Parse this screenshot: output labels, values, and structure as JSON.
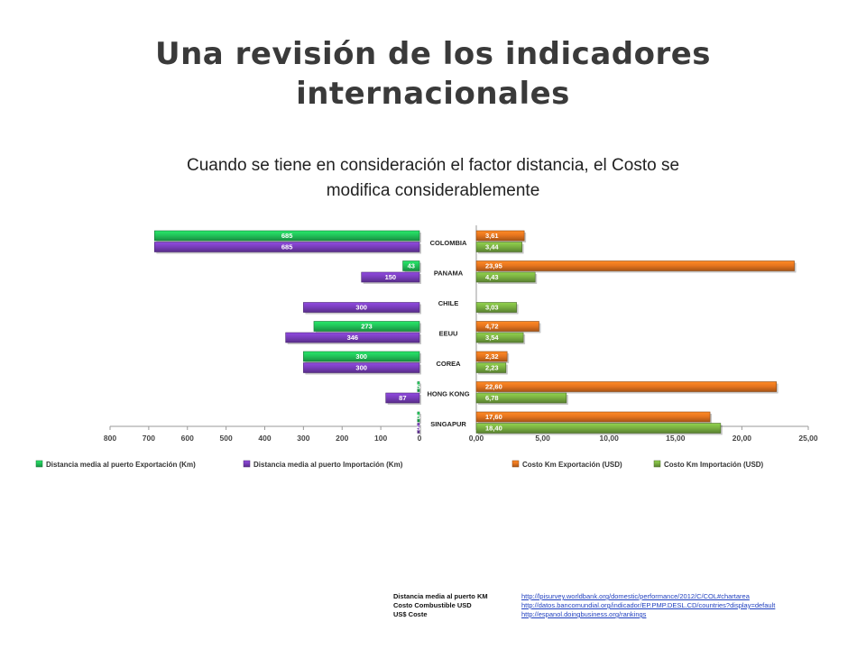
{
  "title_line1": "Una revisión de los indicadores",
  "title_line2": "internacionales",
  "subtitle_line1": "Cuando se tiene en consideración el factor distancia, el Costo se",
  "subtitle_line2": "modifica considerablemente",
  "chart_data": [
    {
      "type": "bar",
      "orientation": "horizontal",
      "direction": "reversed",
      "categories": [
        "COLOMBIA",
        "PANAMA",
        "CHILE",
        "EEUU",
        "COREA",
        "HONG KONG",
        "SINGAPUR"
      ],
      "series": [
        {
          "name": "Distancia media al puerto Exportación (Km)",
          "color": "#22c55a",
          "values": [
            685,
            43,
            null,
            273,
            300,
            5,
            5
          ],
          "labels": [
            "685",
            "43",
            "",
            "273",
            "300",
            "5",
            "5"
          ]
        },
        {
          "name": "Distancia media al puerto Importación (Km)",
          "color": "#7b3fbf",
          "values": [
            685,
            150,
            300,
            346,
            300,
            87,
            5
          ],
          "labels": [
            "685",
            "150",
            "300",
            "346",
            "300",
            "87",
            "5"
          ]
        }
      ],
      "xlim": [
        0,
        800
      ],
      "xticks": [
        "800",
        "700",
        "600",
        "500",
        "400",
        "300",
        "200",
        "100",
        "0"
      ],
      "legend_position": "bottom"
    },
    {
      "type": "bar",
      "orientation": "horizontal",
      "categories": [
        "COLOMBIA",
        "PANAMA",
        "CHILE",
        "EEUU",
        "COREA",
        "HONG KONG",
        "SINGAPUR"
      ],
      "series": [
        {
          "name": "Costo Km Exportación (USD)",
          "color": "#e8761f",
          "values": [
            3.61,
            23.95,
            null,
            4.72,
            2.32,
            22.6,
            17.6
          ],
          "labels": [
            "3,61",
            "23,95",
            "",
            "4,72",
            "2,32",
            "22,60",
            "17,60"
          ]
        },
        {
          "name": "Costo Km Importación (USD)",
          "color": "#7cb342",
          "values": [
            3.44,
            4.43,
            3.03,
            3.54,
            2.23,
            6.78,
            18.4
          ],
          "labels": [
            "3,44",
            "4,43",
            "3,03",
            "3,54",
            "2,23",
            "6,78",
            "18,40"
          ]
        }
      ],
      "xlim": [
        0,
        25
      ],
      "xticks": [
        "0,00",
        "5,00",
        "10,00",
        "15,00",
        "20,00",
        "25,00"
      ],
      "legend_position": "bottom"
    }
  ],
  "sources": [
    {
      "label": "Distancia media al puerto KM",
      "url": "http://lpisurvey.worldbank.org/domestic/performance/2012/C/COL#chartarea"
    },
    {
      "label": "Costo Combustible USD",
      "url": "http://datos.bancomundial.org/indicador/EP.PMP.DESL.CD/countries?display=default"
    },
    {
      "label": "US$ Coste",
      "url": "http://espanol.doingbusiness.org/rankings"
    }
  ]
}
